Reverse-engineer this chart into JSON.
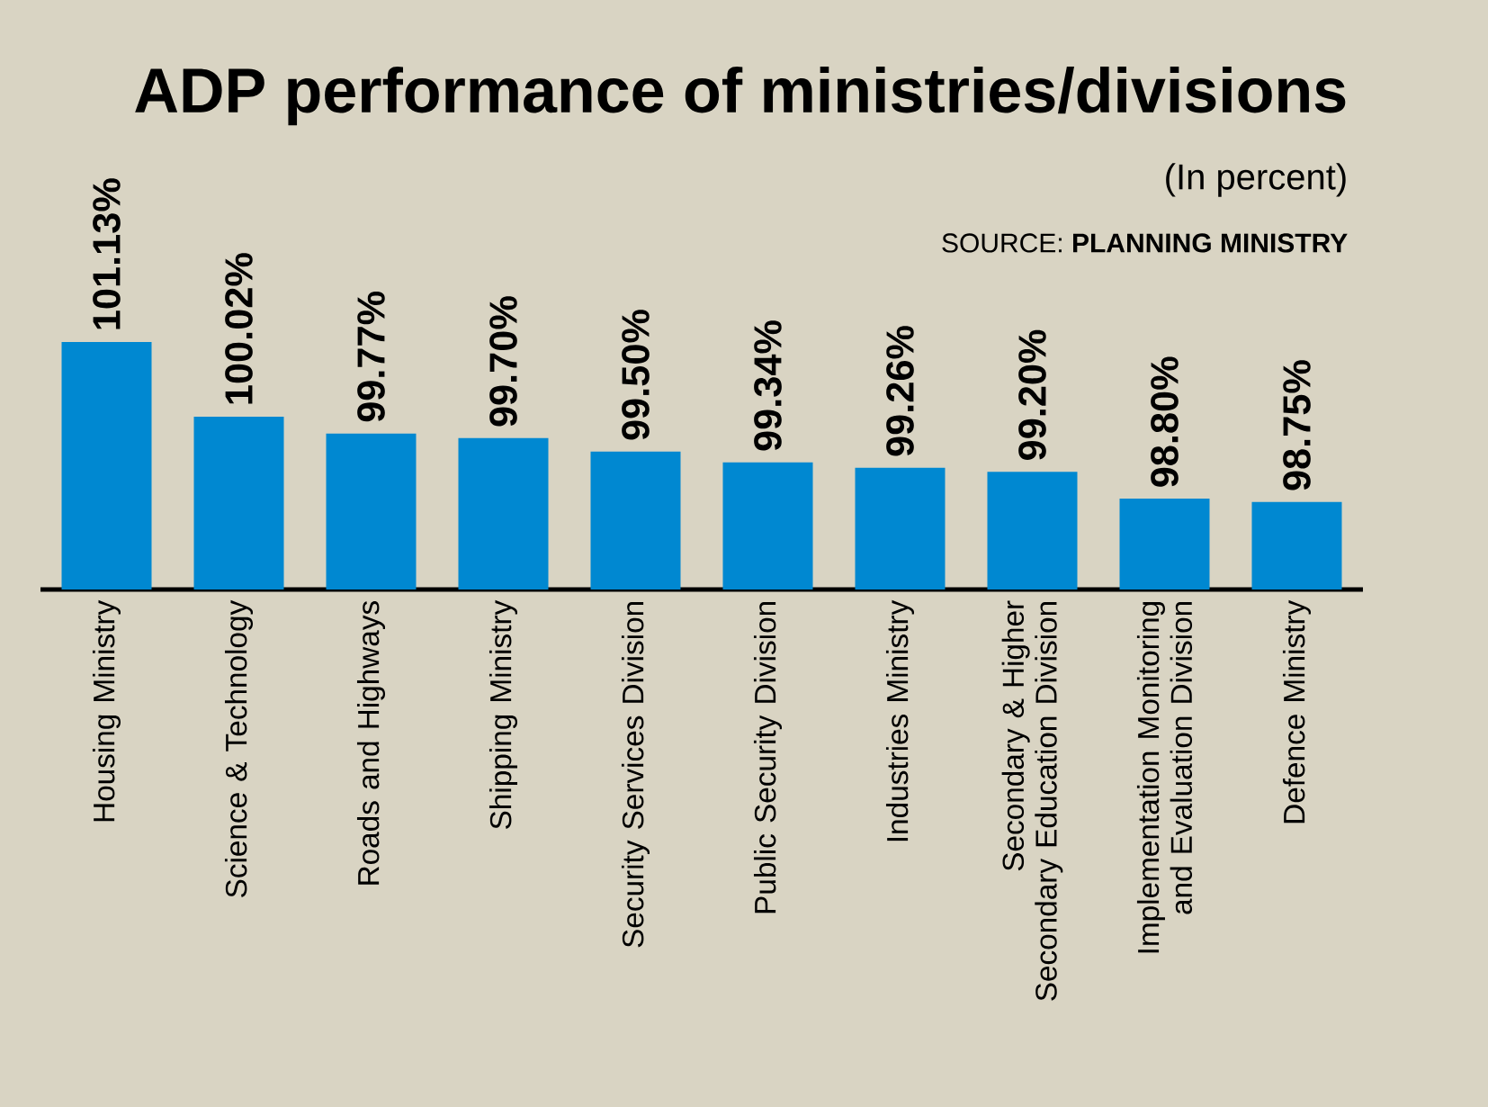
{
  "chart_data": {
    "type": "bar",
    "title": "ADP performance of ministries/divisions",
    "subtitle": "(In percent)",
    "annotations": [
      "SOURCE: **PLANNING MINISTRY**"
    ],
    "categories": [
      "Housing Ministry",
      "Science & Technology",
      "Roads and Highways",
      "Shipping Ministry",
      "Security Services Division",
      "Public Security Division",
      "Industries Ministry",
      "Secondary & Higher Secondary Education Division",
      "Implementation Monitoring and Evaluation Division",
      "Defence Ministry"
    ],
    "values": [
      101.13,
      100.02,
      99.77,
      99.7,
      99.5,
      99.34,
      99.26,
      99.2,
      98.8,
      98.75
    ],
    "value_labels": [
      "101.13%",
      "100.02%",
      "99.77%",
      "99.70%",
      "99.50%",
      "99.34%",
      "99.26%",
      "99.20%",
      "98.80%",
      "98.75%"
    ],
    "color": "#0088d1",
    "ylim": [
      97.45,
      101.13
    ]
  }
}
